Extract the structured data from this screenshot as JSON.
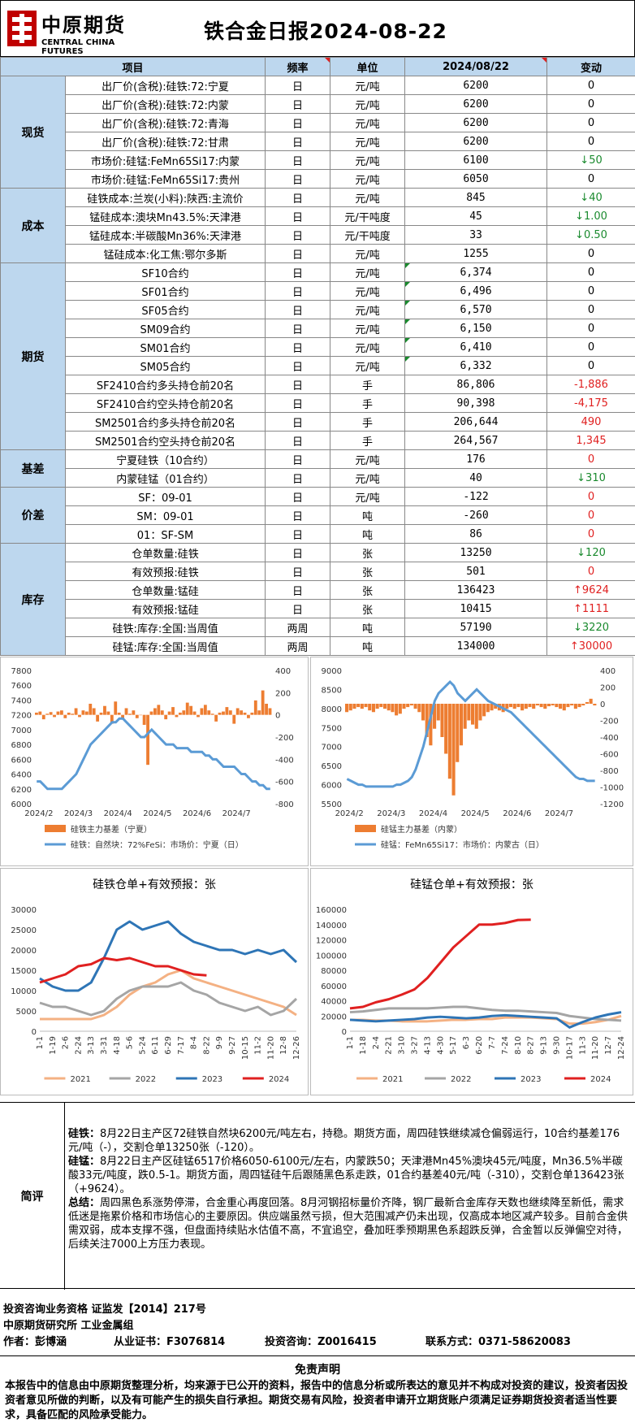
{
  "header": {
    "logo_cn": "中原期货",
    "logo_en": "CENTRAL CHINA FUTURES",
    "title": "铁合金日报2024-08-22"
  },
  "table": {
    "headers": [
      "项目",
      "频率",
      "单位",
      "2024/08/22",
      "变动"
    ],
    "groups": [
      {
        "category": "现货",
        "rows": [
          {
            "item": "出厂价(含税):硅铁:72:宁夏",
            "freq": "日",
            "unit": "元/吨",
            "value": "6200",
            "change": "0",
            "dir": "zero"
          },
          {
            "item": "出厂价(含税):硅铁:72:内蒙",
            "freq": "日",
            "unit": "元/吨",
            "value": "6200",
            "change": "0",
            "dir": "zero"
          },
          {
            "item": "出厂价(含税):硅铁:72:青海",
            "freq": "日",
            "unit": "元/吨",
            "value": "6200",
            "change": "0",
            "dir": "zero"
          },
          {
            "item": "出厂价(含税):硅铁:72:甘肃",
            "freq": "日",
            "unit": "元/吨",
            "value": "6200",
            "change": "0",
            "dir": "zero"
          },
          {
            "item": "市场价:硅锰:FeMn65Si17:内蒙",
            "freq": "日",
            "unit": "元/吨",
            "value": "6100",
            "change": "↓50",
            "dir": "down"
          },
          {
            "item": "市场价:硅锰:FeMn65Si17:贵州",
            "freq": "日",
            "unit": "元/吨",
            "value": "6050",
            "change": "0",
            "dir": "zero"
          }
        ]
      },
      {
        "category": "成本",
        "rows": [
          {
            "item": "硅铁成本:兰炭(小料):陕西:主流价",
            "freq": "日",
            "unit": "元/吨",
            "value": "845",
            "change": "↓40",
            "dir": "down"
          },
          {
            "item": "锰硅成本:澳块Mn43.5%:天津港",
            "freq": "日",
            "unit": "元/干吨度",
            "value": "45",
            "change": "↓1.00",
            "dir": "down"
          },
          {
            "item": "锰硅成本:半碳酸Mn36%:天津港",
            "freq": "日",
            "unit": "元/干吨度",
            "value": "33",
            "change": "↓0.50",
            "dir": "down"
          },
          {
            "item": "锰硅成本:化工焦:鄂尔多斯",
            "freq": "日",
            "unit": "元/吨",
            "value": "1255",
            "change": "0",
            "dir": "zero"
          }
        ]
      },
      {
        "category": "期货",
        "rows": [
          {
            "item": "SF10合约",
            "freq": "日",
            "unit": "元/吨",
            "value": "6,374",
            "change": "0",
            "dir": "zero"
          },
          {
            "item": "SF01合约",
            "freq": "日",
            "unit": "元/吨",
            "value": "6,496",
            "change": "0",
            "dir": "zero"
          },
          {
            "item": "SF05合约",
            "freq": "日",
            "unit": "元/吨",
            "value": "6,570",
            "change": "0",
            "dir": "zero"
          },
          {
            "item": "SM09合约",
            "freq": "日",
            "unit": "元/吨",
            "value": "6,150",
            "change": "0",
            "dir": "zero"
          },
          {
            "item": "SM01合约",
            "freq": "日",
            "unit": "元/吨",
            "value": "6,410",
            "change": "0",
            "dir": "zero"
          },
          {
            "item": "SM05合约",
            "freq": "日",
            "unit": "元/吨",
            "value": "6,332",
            "change": "0",
            "dir": "zero"
          },
          {
            "item": "SF2410合约多头持仓前20名",
            "freq": "日",
            "unit": "手",
            "value": "86,806",
            "change": "-1,886",
            "dir": "red"
          },
          {
            "item": "SF2410合约空头持仓前20名",
            "freq": "日",
            "unit": "手",
            "value": "90,398",
            "change": "-4,175",
            "dir": "red"
          },
          {
            "item": "SM2501合约多头持仓前20名",
            "freq": "日",
            "unit": "手",
            "value": "206,644",
            "change": "490",
            "dir": "red"
          },
          {
            "item": "SM2501合约空头持仓前20名",
            "freq": "日",
            "unit": "手",
            "value": "264,567",
            "change": "1,345",
            "dir": "red"
          }
        ]
      },
      {
        "category": "基差",
        "rows": [
          {
            "item": "宁夏硅铁（10合约）",
            "freq": "日",
            "unit": "元/吨",
            "value": "176",
            "change": "0",
            "dir": "red"
          },
          {
            "item": "内蒙硅锰（01合约）",
            "freq": "日",
            "unit": "元/吨",
            "value": "40",
            "change": "↓310",
            "dir": "down"
          }
        ]
      },
      {
        "category": "价差",
        "rows": [
          {
            "item": "SF：09-01",
            "freq": "日",
            "unit": "元/吨",
            "value": "-122",
            "change": "0",
            "dir": "red"
          },
          {
            "item": "SM：09-01",
            "freq": "日",
            "unit": "吨",
            "value": "-260",
            "change": "0",
            "dir": "red"
          },
          {
            "item": "01：SF-SM",
            "freq": "日",
            "unit": "吨",
            "value": "86",
            "change": "0",
            "dir": "red"
          }
        ]
      },
      {
        "category": "库存",
        "rows": [
          {
            "item": "仓单数量:硅铁",
            "freq": "日",
            "unit": "张",
            "value": "13250",
            "change": "↓120",
            "dir": "down"
          },
          {
            "item": "有效预报:硅铁",
            "freq": "日",
            "unit": "张",
            "value": "501",
            "change": "0",
            "dir": "red"
          },
          {
            "item": "仓单数量:锰硅",
            "freq": "日",
            "unit": "张",
            "value": "136423",
            "change": "↑9624",
            "dir": "up"
          },
          {
            "item": "有效预报:锰硅",
            "freq": "日",
            "unit": "张",
            "value": "10415",
            "change": "↑1111",
            "dir": "up"
          },
          {
            "item": "硅铁:库存:全国:当周值",
            "freq": "两周",
            "unit": "吨",
            "value": "57190",
            "change": "↓3220",
            "dir": "down"
          },
          {
            "item": "硅锰:库存:全国:当周值",
            "freq": "两周",
            "unit": "吨",
            "value": "134000",
            "change": "↑30000",
            "dir": "up"
          }
        ]
      }
    ]
  },
  "chart_data": [
    {
      "type": "line",
      "title": "",
      "x_ticks": [
        "2024/2",
        "2024/3",
        "2024/4",
        "2024/5",
        "2024/6",
        "2024/7"
      ],
      "y_left_ticks": [
        "6000",
        "6200",
        "6400",
        "6600",
        "6800",
        "7000",
        "7200",
        "7400",
        "7600",
        "7800"
      ],
      "y_right_ticks": [
        "-800",
        "-600",
        "-400",
        "-200",
        "0",
        "200",
        "400"
      ],
      "ylim_left": [
        6000,
        7800
      ],
      "ylim_right": [
        -800,
        400
      ],
      "series": [
        {
          "name": "硅铁主力基差（宁夏）",
          "kind": "bar",
          "axis": "right",
          "color": "#ed7d31",
          "values": [
            20,
            30,
            -40,
            10,
            25,
            -20,
            30,
            40,
            -30,
            20,
            10,
            60,
            -20,
            40,
            30,
            100,
            60,
            -60,
            20,
            80,
            30,
            -80,
            120,
            20,
            -40,
            60,
            10,
            40,
            -30,
            0,
            -90,
            -450,
            30,
            60,
            90,
            40,
            -40,
            30,
            70,
            -20,
            20,
            40,
            110,
            80,
            30,
            -20,
            60,
            90,
            40,
            10,
            -60,
            20,
            30,
            70,
            40,
            -80,
            60,
            40,
            20,
            -30,
            20,
            130,
            40,
            220,
            100,
            60
          ]
        },
        {
          "name": "硅铁：自然块：72%FeSi：市场价：宁夏（日）",
          "kind": "line",
          "axis": "left",
          "color": "#5b9bd5",
          "values": [
            6300,
            6300,
            6250,
            6200,
            6200,
            6200,
            6200,
            6200,
            6250,
            6300,
            6350,
            6400,
            6500,
            6600,
            6700,
            6800,
            6850,
            6900,
            6950,
            7000,
            7050,
            7100,
            7100,
            7150,
            7150,
            7100,
            7050,
            7000,
            6950,
            6900,
            6900,
            6950,
            7000,
            6950,
            6900,
            6850,
            6800,
            6800,
            6800,
            6750,
            6750,
            6750,
            6750,
            6700,
            6700,
            6700,
            6700,
            6650,
            6650,
            6600,
            6600,
            6550,
            6500,
            6500,
            6500,
            6500,
            6450,
            6400,
            6400,
            6350,
            6300,
            6300,
            6250,
            6250,
            6200,
            6200
          ]
        }
      ]
    },
    {
      "type": "line",
      "title": "",
      "x_ticks": [
        "2024/2",
        "2024/3",
        "2024/4",
        "2024/5",
        "2024/6",
        "2024/7"
      ],
      "y_left_ticks": [
        "5500",
        "6000",
        "6500",
        "7000",
        "7500",
        "8000",
        "8500",
        "9000"
      ],
      "y_right_ticks": [
        "-1200",
        "-1000",
        "-800",
        "-600",
        "-400",
        "-200",
        "0",
        "200",
        "400"
      ],
      "ylim_left": [
        5500,
        9000
      ],
      "ylim_right": [
        -1200,
        400
      ],
      "series": [
        {
          "name": "硅锰主力基差（内蒙）",
          "kind": "bar",
          "axis": "right",
          "color": "#ed7d31",
          "values": [
            -100,
            -80,
            -60,
            -40,
            -60,
            -40,
            -80,
            -100,
            -60,
            -40,
            -60,
            -80,
            -100,
            -140,
            -120,
            -60,
            -40,
            -20,
            -60,
            -100,
            -200,
            -400,
            -500,
            -300,
            -200,
            -400,
            -600,
            -900,
            -1100,
            -700,
            -500,
            -300,
            -200,
            -250,
            -300,
            -200,
            -150,
            -100,
            -80,
            -60,
            -80,
            -100,
            -60,
            -40,
            -60,
            -40,
            -80,
            -60,
            -40,
            -60,
            -20,
            -40,
            -60,
            -30,
            -20,
            -40,
            -60,
            -80,
            -40,
            -20,
            -60,
            -40,
            -20,
            20,
            60,
            -20
          ]
        },
        {
          "name": "硅锰：FeMn65Si17：市场价：内蒙古（日）",
          "kind": "line",
          "axis": "left",
          "color": "#5b9bd5",
          "values": [
            6150,
            6100,
            6050,
            6000,
            6000,
            5950,
            5950,
            5950,
            5950,
            5950,
            5950,
            5950,
            5950,
            6000,
            6000,
            6050,
            6100,
            6200,
            6400,
            6700,
            7000,
            7400,
            7800,
            8200,
            8400,
            8500,
            8600,
            8700,
            8600,
            8400,
            8300,
            8200,
            8300,
            8400,
            8500,
            8400,
            8300,
            8200,
            8150,
            8100,
            8050,
            8000,
            7950,
            7900,
            7800,
            7700,
            7600,
            7500,
            7400,
            7300,
            7200,
            7100,
            7000,
            6900,
            6800,
            6700,
            6600,
            6500,
            6400,
            6300,
            6200,
            6150,
            6150,
            6100,
            6100,
            6100
          ]
        }
      ]
    },
    {
      "type": "line",
      "title": "硅铁仓单+有效预报：张",
      "x_ticks": [
        "1-1",
        "1-19",
        "2-6",
        "2-24",
        "3-13",
        "3-31",
        "4-18",
        "5-6",
        "5-24",
        "6-11",
        "6-29",
        "7-17",
        "8-4",
        "8-22",
        "9-9",
        "9-27",
        "10-15",
        "11-2",
        "11-20",
        "12-8",
        "12-26"
      ],
      "y_ticks": [
        "0",
        "5000",
        "10000",
        "15000",
        "20000",
        "25000",
        "30000"
      ],
      "ylim": [
        0,
        30000
      ],
      "series": [
        {
          "name": "2021",
          "color": "#f4b183",
          "values": [
            3000,
            3000,
            3000,
            3000,
            3000,
            4000,
            6000,
            9000,
            11000,
            12000,
            14000,
            15000,
            13000,
            12000,
            11000,
            10000,
            9000,
            8000,
            7000,
            6000,
            4000
          ]
        },
        {
          "name": "2022",
          "color": "#a5a5a5",
          "values": [
            7000,
            6000,
            6000,
            5000,
            4000,
            5000,
            8000,
            10000,
            11000,
            11000,
            11000,
            12000,
            10000,
            9000,
            7000,
            6000,
            5000,
            6000,
            4000,
            5000,
            8000
          ]
        },
        {
          "name": "2023",
          "color": "#2e75b6",
          "values": [
            13000,
            11000,
            10000,
            10000,
            12000,
            18000,
            25000,
            27000,
            25000,
            26000,
            27000,
            24000,
            22000,
            21000,
            20000,
            20000,
            19000,
            20000,
            19000,
            20000,
            17000
          ]
        },
        {
          "name": "2024",
          "color": "#e02020",
          "values": [
            12000,
            13000,
            14000,
            16000,
            16500,
            18000,
            17500,
            18000,
            17000,
            16000,
            16000,
            15000,
            14000,
            13750,
            null,
            null,
            null,
            null,
            null,
            null,
            null
          ]
        }
      ]
    },
    {
      "type": "line",
      "title": "硅锰仓单+有效预报：张",
      "x_ticks": [
        "1-1",
        "1-18",
        "2-4",
        "2-21",
        "3-10",
        "3-27",
        "4-13",
        "4-30",
        "5-17",
        "6-3",
        "6-20",
        "7-7",
        "7-24",
        "8-10",
        "8-27",
        "9-13",
        "9-30",
        "10-17",
        "11-3",
        "11-20",
        "12-7",
        "12-24"
      ],
      "y_ticks": [
        "0",
        "20000",
        "40000",
        "60000",
        "80000",
        "100000",
        "120000",
        "140000",
        "160000"
      ],
      "ylim": [
        0,
        160000
      ],
      "series": [
        {
          "name": "2021",
          "color": "#f4b183",
          "values": [
            15000,
            15000,
            14000,
            14000,
            13000,
            13000,
            13000,
            14000,
            15000,
            15000,
            16000,
            16000,
            18000,
            18000,
            18000,
            17000,
            16000,
            10000,
            10000,
            12000,
            15000,
            20000
          ]
        },
        {
          "name": "2022",
          "color": "#a5a5a5",
          "values": [
            25000,
            26000,
            28000,
            30000,
            30000,
            30000,
            30000,
            31000,
            32000,
            32000,
            30000,
            28000,
            27000,
            27000,
            26000,
            25000,
            24000,
            20000,
            18000,
            16000,
            15000,
            14000
          ]
        },
        {
          "name": "2023",
          "color": "#2e75b6",
          "values": [
            15000,
            14000,
            13000,
            14000,
            15000,
            16000,
            18000,
            19000,
            18000,
            17000,
            18000,
            20000,
            21000,
            20000,
            19000,
            18000,
            17000,
            5000,
            12000,
            18000,
            22000,
            25000
          ]
        },
        {
          "name": "2024",
          "color": "#e02020",
          "values": [
            30000,
            32000,
            38000,
            42000,
            48000,
            55000,
            70000,
            90000,
            110000,
            125000,
            140000,
            140000,
            142000,
            146000,
            146423,
            null,
            null,
            null,
            null,
            null,
            null,
            null
          ]
        }
      ]
    }
  ],
  "chart_labels": {
    "c1_leg1": "硅铁主力基差（宁夏）",
    "c1_leg2": "硅铁：自然块：72%FeSi：市场价：宁夏（日）",
    "c2_leg1": "硅锰主力基差（内蒙）",
    "c2_leg2": "硅锰：FeMn65Si17：市场价：内蒙古（日）",
    "c3_title": "硅铁仓单+有效预报：张",
    "c4_title": "硅锰仓单+有效预报：张"
  },
  "summary": {
    "label": "简评",
    "p1_bold": "硅铁：",
    "p1": "8月22日主产区72硅铁自然块6200元/吨左右，持稳。期货方面，周四硅铁继续减仓偏弱运行，10合约基差176元/吨（-），交割仓单13250张（-120）。",
    "p2_bold": "硅锰：",
    "p2": "8月22日主产区硅锰6517价格6050-6100元/左右，内蒙跌50；天津港Mn45%澳块45元/吨度，Mn36.5%半碳酸33元/吨度，跌0.5-1。期货方面，周四锰硅午后跟随黑色系走跌，01合约基差40元/吨（-310），交割仓单136423张（+9624）。",
    "p3_bold": "总结：",
    "p3": "周四黑色系涨势停滞，合金重心再度回落。8月河钢招标量价齐降，钢厂最新合金库存天数也继续降至新低，需求低迷是拖累价格和市场信心的主要原因。供应端虽然亏损，但大范围减产仍未出现，仅高成本地区减产较多。目前合金供需双弱，成本支撑不强，但盘面持续贴水估值不高，不宜追空，叠加旺季预期黑色系超跌反弹，合金暂以反弹偏空对待，后续关注7000上方压力表现。"
  },
  "footer": {
    "line1": "投资咨询业务资格   证监发【2014】217号",
    "line2": "中原期货研究所   工业金属组",
    "author": "作者：彭博涵",
    "cert": "从业证书：F3076814",
    "consult": "投资咨询：Z0016415",
    "contact": "联系方式：0371-58620083"
  },
  "disclaimer": {
    "title": "免责声明",
    "text": "本报告中的信息由中原期货整理分析，均来源于已公开的资料，报告中的信息分析或所表达的意见并不构成对投资的建议，投资者因投资者意见所做的判断，以及有可能产生的损失自行承担。期货交易有风险，投资者申请开立期货账户须满足证券期货投资者适当性要求，具备匹配的风险承受能力。"
  }
}
